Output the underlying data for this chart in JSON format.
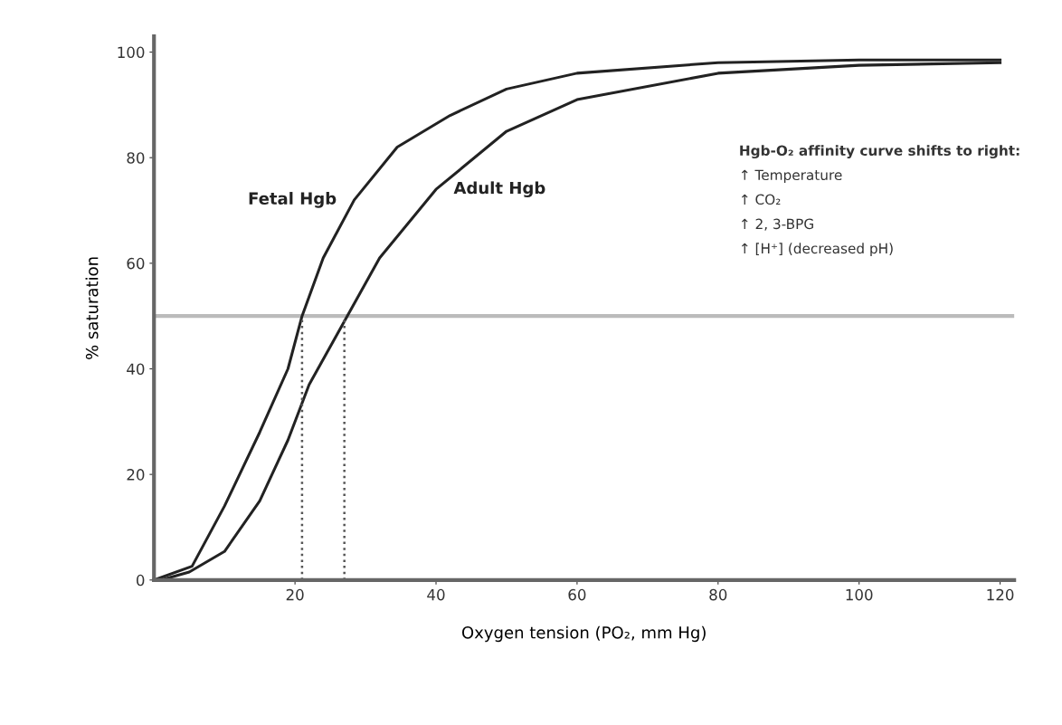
{
  "chart_data": {
    "type": "line",
    "xlabel": "Oxygen tension (PO₂, mm Hg)",
    "ylabel": "% saturation",
    "xlim": [
      0,
      122
    ],
    "ylim": [
      0,
      103
    ],
    "xticks": [
      20,
      40,
      60,
      80,
      100,
      120
    ],
    "yticks": [
      0,
      20,
      40,
      60,
      80,
      100
    ],
    "grid": false,
    "legend": false,
    "marker": "none",
    "series": [
      {
        "name": "Fetal Hgb",
        "color": "#222222",
        "line_style": "solid",
        "x": [
          0,
          5.4,
          10,
          15,
          19,
          21,
          24,
          28.4,
          34.5,
          42,
          50,
          60,
          80,
          100,
          120
        ],
        "values": [
          0,
          2.6,
          14,
          28,
          40,
          50,
          61,
          72,
          82,
          88,
          93,
          96,
          98,
          98.5,
          98.5
        ]
      },
      {
        "name": "Adult Hgb",
        "color": "#222222",
        "line_style": "solid",
        "x": [
          1,
          5,
          10,
          15,
          19,
          22,
          27,
          32,
          40,
          50,
          60,
          80,
          100,
          120
        ],
        "values": [
          0,
          1.5,
          5.4,
          15,
          26.5,
          37,
          49,
          61,
          74,
          85,
          91,
          96,
          97.5,
          98
        ]
      },
      {
        "color": "#555555",
        "line_style": "dotted",
        "x": [
          21,
          21
        ],
        "values": [
          0,
          50
        ]
      },
      {
        "color": "#555555",
        "line_style": "dotted",
        "x": [
          27,
          27
        ],
        "values": [
          0,
          50
        ]
      }
    ],
    "ref_lines": [
      {
        "axis": "y",
        "value": 50,
        "color": "#bbbbbb"
      }
    ],
    "annotations": [
      "Hgb-O₂ affinity curve shifts to right:",
      "↑ Temperature",
      "↑ CO₂",
      "↑ 2, 3-BPG",
      "↑ [H⁺] (decreased pH)"
    ]
  }
}
